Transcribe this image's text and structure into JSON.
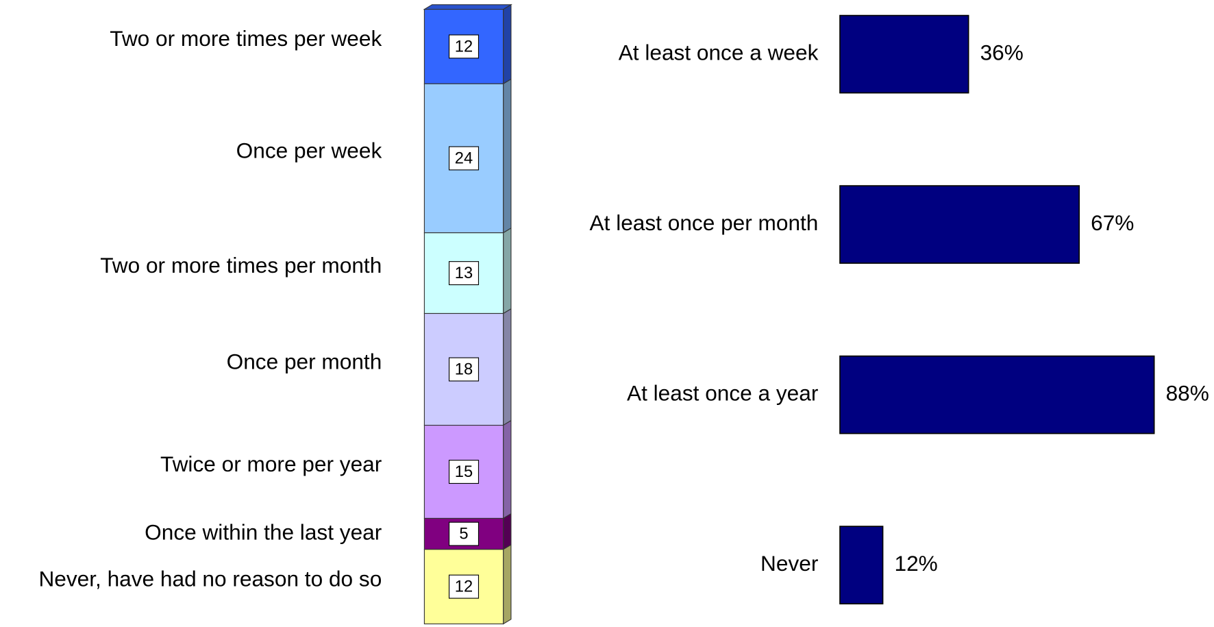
{
  "chart_data": [
    {
      "type": "stacked-bar",
      "categories": [
        "Two or more times per week",
        "Once per week",
        "Two or more times per month",
        "Once per month",
        "Twice or more per year",
        "Once within the last year",
        "Never, have had no reason to do so"
      ],
      "values": [
        12,
        24,
        13,
        18,
        15,
        5,
        12
      ],
      "colors": [
        "#3366ff",
        "#99ccff",
        "#ccffff",
        "#ccccff",
        "#cc99ff",
        "#800080",
        "#ffff99"
      ]
    },
    {
      "type": "hbar",
      "categories": [
        "At least once a week",
        "At least once per month",
        "At least once a year",
        "Never"
      ],
      "values": [
        36,
        67,
        88,
        12
      ],
      "value_labels": [
        "36%",
        "67%",
        "88%",
        "12%"
      ],
      "color": "#000080"
    }
  ]
}
